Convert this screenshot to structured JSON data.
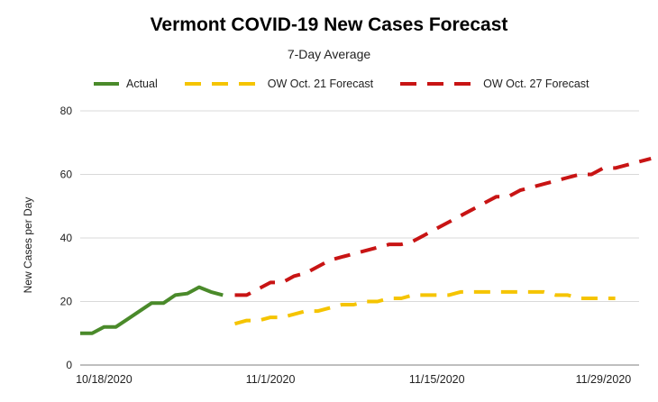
{
  "chart_data": {
    "type": "line",
    "title": "Vermont COVID-19 New Cases Forecast",
    "subtitle": "7-Day Average",
    "xlabel": "",
    "ylabel": "New Cases per Day",
    "ylim": [
      0,
      80
    ],
    "yticks": [
      0,
      20,
      40,
      60,
      80
    ],
    "xlim": [
      0,
      47
    ],
    "xticks": [
      {
        "x": 2,
        "label": "10/18/2020"
      },
      {
        "x": 16,
        "label": "11/1/2020"
      },
      {
        "x": 30,
        "label": "11/15/2020"
      },
      {
        "x": 44,
        "label": "11/29/2020"
      }
    ],
    "grid": true,
    "legend_position": "top-left",
    "series": [
      {
        "name": "Actual",
        "color": "#4a8a2a",
        "style": "solid",
        "points": [
          [
            0,
            10
          ],
          [
            1,
            10
          ],
          [
            2,
            12
          ],
          [
            3,
            12
          ],
          [
            4,
            14.5
          ],
          [
            5,
            17
          ],
          [
            6,
            19.5
          ],
          [
            7,
            19.5
          ],
          [
            8,
            22
          ],
          [
            9,
            22.5
          ],
          [
            10,
            24.5
          ],
          [
            11,
            23
          ],
          [
            12,
            22
          ]
        ]
      },
      {
        "name": "OW Oct. 21 Forecast",
        "color": "#f5c400",
        "style": "dashed",
        "points": [
          [
            13,
            13
          ],
          [
            14,
            14
          ],
          [
            15,
            14
          ],
          [
            16,
            15
          ],
          [
            17,
            15
          ],
          [
            18,
            16
          ],
          [
            19,
            17
          ],
          [
            20,
            17
          ],
          [
            21,
            18
          ],
          [
            22,
            19
          ],
          [
            23,
            19
          ],
          [
            24,
            20
          ],
          [
            25,
            20
          ],
          [
            26,
            21
          ],
          [
            27,
            21
          ],
          [
            28,
            22
          ],
          [
            29,
            22
          ],
          [
            30,
            22
          ],
          [
            31,
            22
          ],
          [
            32,
            23
          ],
          [
            33,
            23
          ],
          [
            34,
            23
          ],
          [
            35,
            23
          ],
          [
            36,
            23
          ],
          [
            37,
            23
          ],
          [
            38,
            23
          ],
          [
            39,
            23
          ],
          [
            40,
            22
          ],
          [
            41,
            22
          ],
          [
            42,
            21
          ],
          [
            43,
            21
          ],
          [
            44,
            21
          ],
          [
            45,
            21
          ]
        ]
      },
      {
        "name": "OW Oct. 27 Forecast",
        "color": "#c81414",
        "style": "dashed",
        "points": [
          [
            13,
            22
          ],
          [
            14,
            22
          ],
          [
            15,
            24
          ],
          [
            16,
            26
          ],
          [
            17,
            26
          ],
          [
            18,
            28
          ],
          [
            19,
            29
          ],
          [
            20,
            31
          ],
          [
            21,
            33
          ],
          [
            22,
            34
          ],
          [
            23,
            35
          ],
          [
            24,
            36
          ],
          [
            25,
            37
          ],
          [
            26,
            38
          ],
          [
            27,
            38
          ],
          [
            28,
            39
          ],
          [
            29,
            41
          ],
          [
            30,
            43
          ],
          [
            31,
            45
          ],
          [
            32,
            47
          ],
          [
            33,
            49
          ],
          [
            34,
            51
          ],
          [
            35,
            53
          ],
          [
            36,
            53
          ],
          [
            37,
            55
          ],
          [
            38,
            56
          ],
          [
            39,
            57
          ],
          [
            40,
            58
          ],
          [
            41,
            59
          ],
          [
            42,
            60
          ],
          [
            43,
            60
          ],
          [
            44,
            62
          ],
          [
            45,
            62
          ],
          [
            46,
            63
          ],
          [
            47,
            64
          ],
          [
            48,
            65
          ]
        ]
      }
    ]
  }
}
